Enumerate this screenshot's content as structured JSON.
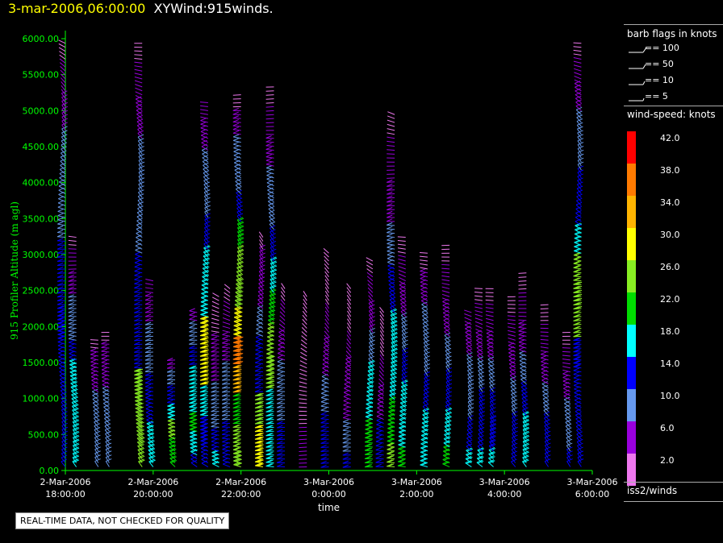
{
  "header": {
    "timestamp": "3-mar-2006,06:00:00",
    "title": "XYWind:915winds."
  },
  "footer_note": "REAL-TIME DATA, NOT CHECKED FOR QUALITY",
  "source_label": "iss2/winds",
  "barb_legend": {
    "title": "barb flags in knots",
    "items": [
      "== 100",
      "== 50",
      "== 10",
      "== 5"
    ]
  },
  "colors": {
    "axis": "#00ff00",
    "timestamp": "#ffff00"
  },
  "colorscale": {
    "title": "wind-speed: knots",
    "levels": [
      {
        "label": "42.0",
        "color": "#ff0000"
      },
      {
        "label": "38.0",
        "color": "#ff7a00"
      },
      {
        "label": "34.0",
        "color": "#ffb400"
      },
      {
        "label": "30.0",
        "color": "#ffff00"
      },
      {
        "label": "26.0",
        "color": "#88ee22"
      },
      {
        "label": "22.0",
        "color": "#00dd00"
      },
      {
        "label": "18.0",
        "color": "#00ffff"
      },
      {
        "label": "14.0",
        "color": "#0000ff"
      },
      {
        "label": "10.0",
        "color": "#6699ee"
      },
      {
        "label": "6.0",
        "color": "#9900dd"
      },
      {
        "label": "2.0",
        "color": "#ee77ee"
      }
    ]
  },
  "chart_data": {
    "type": "scatter",
    "title": "XYWind:915winds.",
    "xlabel": "time",
    "ylabel": "915 Profiler Altitude (m agl)",
    "xlim": [
      "2-Mar-2006 18:00:00",
      "3-Mar-2006 06:00:00"
    ],
    "ylim": [
      0,
      6000
    ],
    "x_ticks": [
      {
        "date": "2-Mar-2006",
        "time": "18:00:00"
      },
      {
        "date": "2-Mar-2006",
        "time": "20:00:00"
      },
      {
        "date": "2-Mar-2006",
        "time": "22:00:00"
      },
      {
        "date": "3-Mar-2006",
        "time": "0:00:00"
      },
      {
        "date": "3-Mar-2006",
        "time": "2:00:00"
      },
      {
        "date": "3-Mar-2006",
        "time": "4:00:00"
      },
      {
        "date": "3-Mar-2006",
        "time": "6:00:00"
      }
    ],
    "y_ticks": [
      "0.00",
      "500.00",
      "1000.00",
      "1500.00",
      "2000.00",
      "2500.00",
      "3000.00",
      "3500.00",
      "4000.00",
      "4500.00",
      "5000.00",
      "5500.00",
      "6000.00"
    ],
    "grid": false,
    "profiles": [
      {
        "time": "2-Mar-2006 18:00",
        "top": 6000,
        "s": [
          12,
          12,
          14,
          14,
          15,
          13,
          12,
          11,
          9,
          8,
          6,
          4,
          3
        ]
      },
      {
        "time": "2-Mar-2006 18:15",
        "top": 3300,
        "s": [
          16,
          17,
          18,
          17,
          16,
          13,
          10,
          8,
          6,
          4,
          3
        ]
      },
      {
        "time": "2-Mar-2006 18:45",
        "top": 1900,
        "s": [
          9,
          9,
          10,
          8,
          7,
          5,
          3
        ]
      },
      {
        "time": "2-Mar-2006 19:00",
        "top": 2000,
        "s": [
          10,
          11,
          10,
          9,
          7,
          5,
          3
        ]
      },
      {
        "time": "2-Mar-2006 19:45",
        "top": 6000,
        "s": [
          24,
          25,
          27,
          13,
          14,
          12,
          11,
          10,
          8,
          6,
          4,
          3
        ]
      },
      {
        "time": "2-Mar-2006 20:00",
        "top": 2700,
        "s": [
          18,
          16,
          14,
          12,
          10,
          8,
          6,
          4
        ]
      },
      {
        "time": "2-Mar-2006 20:30",
        "top": 1600,
        "s": [
          20,
          22,
          24,
          18,
          14,
          10,
          6
        ]
      },
      {
        "time": "2-Mar-2006 21:00",
        "top": 2300,
        "s": [
          14,
          18,
          20,
          19,
          16,
          12,
          8,
          5
        ]
      },
      {
        "time": "2-Mar-2006 21:15",
        "top": 5200,
        "s": [
          14,
          15,
          16,
          30,
          28,
          19,
          17,
          14,
          10,
          8,
          6,
          4
        ]
      },
      {
        "time": "2-Mar-2006 21:30",
        "top": 2500,
        "s": [
          17,
          14,
          11,
          9,
          7,
          5,
          3,
          3
        ]
      },
      {
        "time": "2-Mar-2006 21:45",
        "top": 2600,
        "s": [
          14,
          13,
          10,
          8,
          6,
          4,
          3
        ]
      },
      {
        "time": "2-Mar-2006 22:00",
        "top": 5300,
        "s": [
          26,
          24,
          20,
          34,
          36,
          30,
          26,
          24,
          20,
          14,
          10,
          8,
          5,
          3
        ]
      },
      {
        "time": "2-Mar-2006 22:30",
        "top": 3300,
        "s": [
          30,
          28,
          26,
          14,
          12,
          9,
          7,
          5,
          3
        ]
      },
      {
        "time": "2-Mar-2006 22:45",
        "top": 5400,
        "s": [
          18,
          18,
          17,
          26,
          24,
          22,
          18,
          14,
          10,
          8,
          6,
          4,
          3
        ]
      },
      {
        "time": "2-Mar-2006 23:00",
        "top": 2600,
        "s": [
          14,
          12,
          10,
          8,
          6,
          4,
          3
        ]
      },
      {
        "time": "2-Mar-2006 23:30",
        "top": 2500,
        "s": [
          4,
          4,
          3,
          3,
          3,
          2,
          2
        ]
      },
      {
        "time": "3-Mar-2006 0:00",
        "top": 3100,
        "s": [
          14,
          13,
          8,
          6,
          4,
          3,
          3
        ]
      },
      {
        "time": "3-Mar-2006 0:30",
        "top": 2600,
        "s": [
          12,
          10,
          6,
          5,
          4,
          3,
          2
        ]
      },
      {
        "time": "3-Mar-2006 1:00",
        "top": 3000,
        "s": [
          22,
          20,
          18,
          16,
          8,
          6,
          4,
          3
        ]
      },
      {
        "time": "3-Mar-2006 1:15",
        "top": 2300,
        "s": [
          14,
          12,
          6,
          4,
          3,
          2
        ]
      },
      {
        "time": "3-Mar-2006 1:30",
        "top": 5000,
        "s": [
          24,
          22,
          18,
          16,
          14,
          10,
          6,
          4,
          3
        ]
      },
      {
        "time": "3-Mar-2006 1:45",
        "top": 3300,
        "s": [
          20,
          18,
          16,
          12,
          10,
          6,
          4,
          3
        ]
      },
      {
        "time": "3-Mar-2006 2:15",
        "top": 3100,
        "s": [
          18,
          16,
          12,
          10,
          8,
          5,
          3
        ]
      },
      {
        "time": "3-Mar-2006 2:45",
        "top": 3200,
        "s": [
          20,
          18,
          14,
          10,
          6,
          4,
          3
        ]
      },
      {
        "time": "3-Mar-2006 3:15",
        "top": 2300,
        "s": [
          16,
          14,
          10,
          8,
          6,
          4
        ]
      },
      {
        "time": "3-Mar-2006 3:30",
        "top": 2600,
        "s": [
          16,
          14,
          12,
          8,
          6,
          4,
          3
        ]
      },
      {
        "time": "3-Mar-2006 3:45",
        "top": 2600,
        "s": [
          17,
          15,
          12,
          8,
          6,
          4,
          3
        ]
      },
      {
        "time": "3-Mar-2006 4:15",
        "top": 2500,
        "s": [
          14,
          12,
          8,
          6,
          4,
          3
        ]
      },
      {
        "time": "3-Mar-2006 4:30",
        "top": 2800,
        "s": [
          18,
          16,
          12,
          8,
          6,
          4,
          3
        ]
      },
      {
        "time": "3-Mar-2006 5:00",
        "top": 2400,
        "s": [
          14,
          12,
          8,
          6,
          4,
          3
        ]
      },
      {
        "time": "3-Mar-2006 5:30",
        "top": 2000,
        "s": [
          12,
          10,
          8,
          6,
          4,
          3
        ]
      },
      {
        "time": "3-Mar-2006 5:45",
        "top": 6000,
        "s": [
          14,
          14,
          14,
          14,
          15,
          24,
          26,
          24,
          18,
          14,
          12,
          10,
          8,
          6,
          4,
          3
        ]
      }
    ]
  }
}
